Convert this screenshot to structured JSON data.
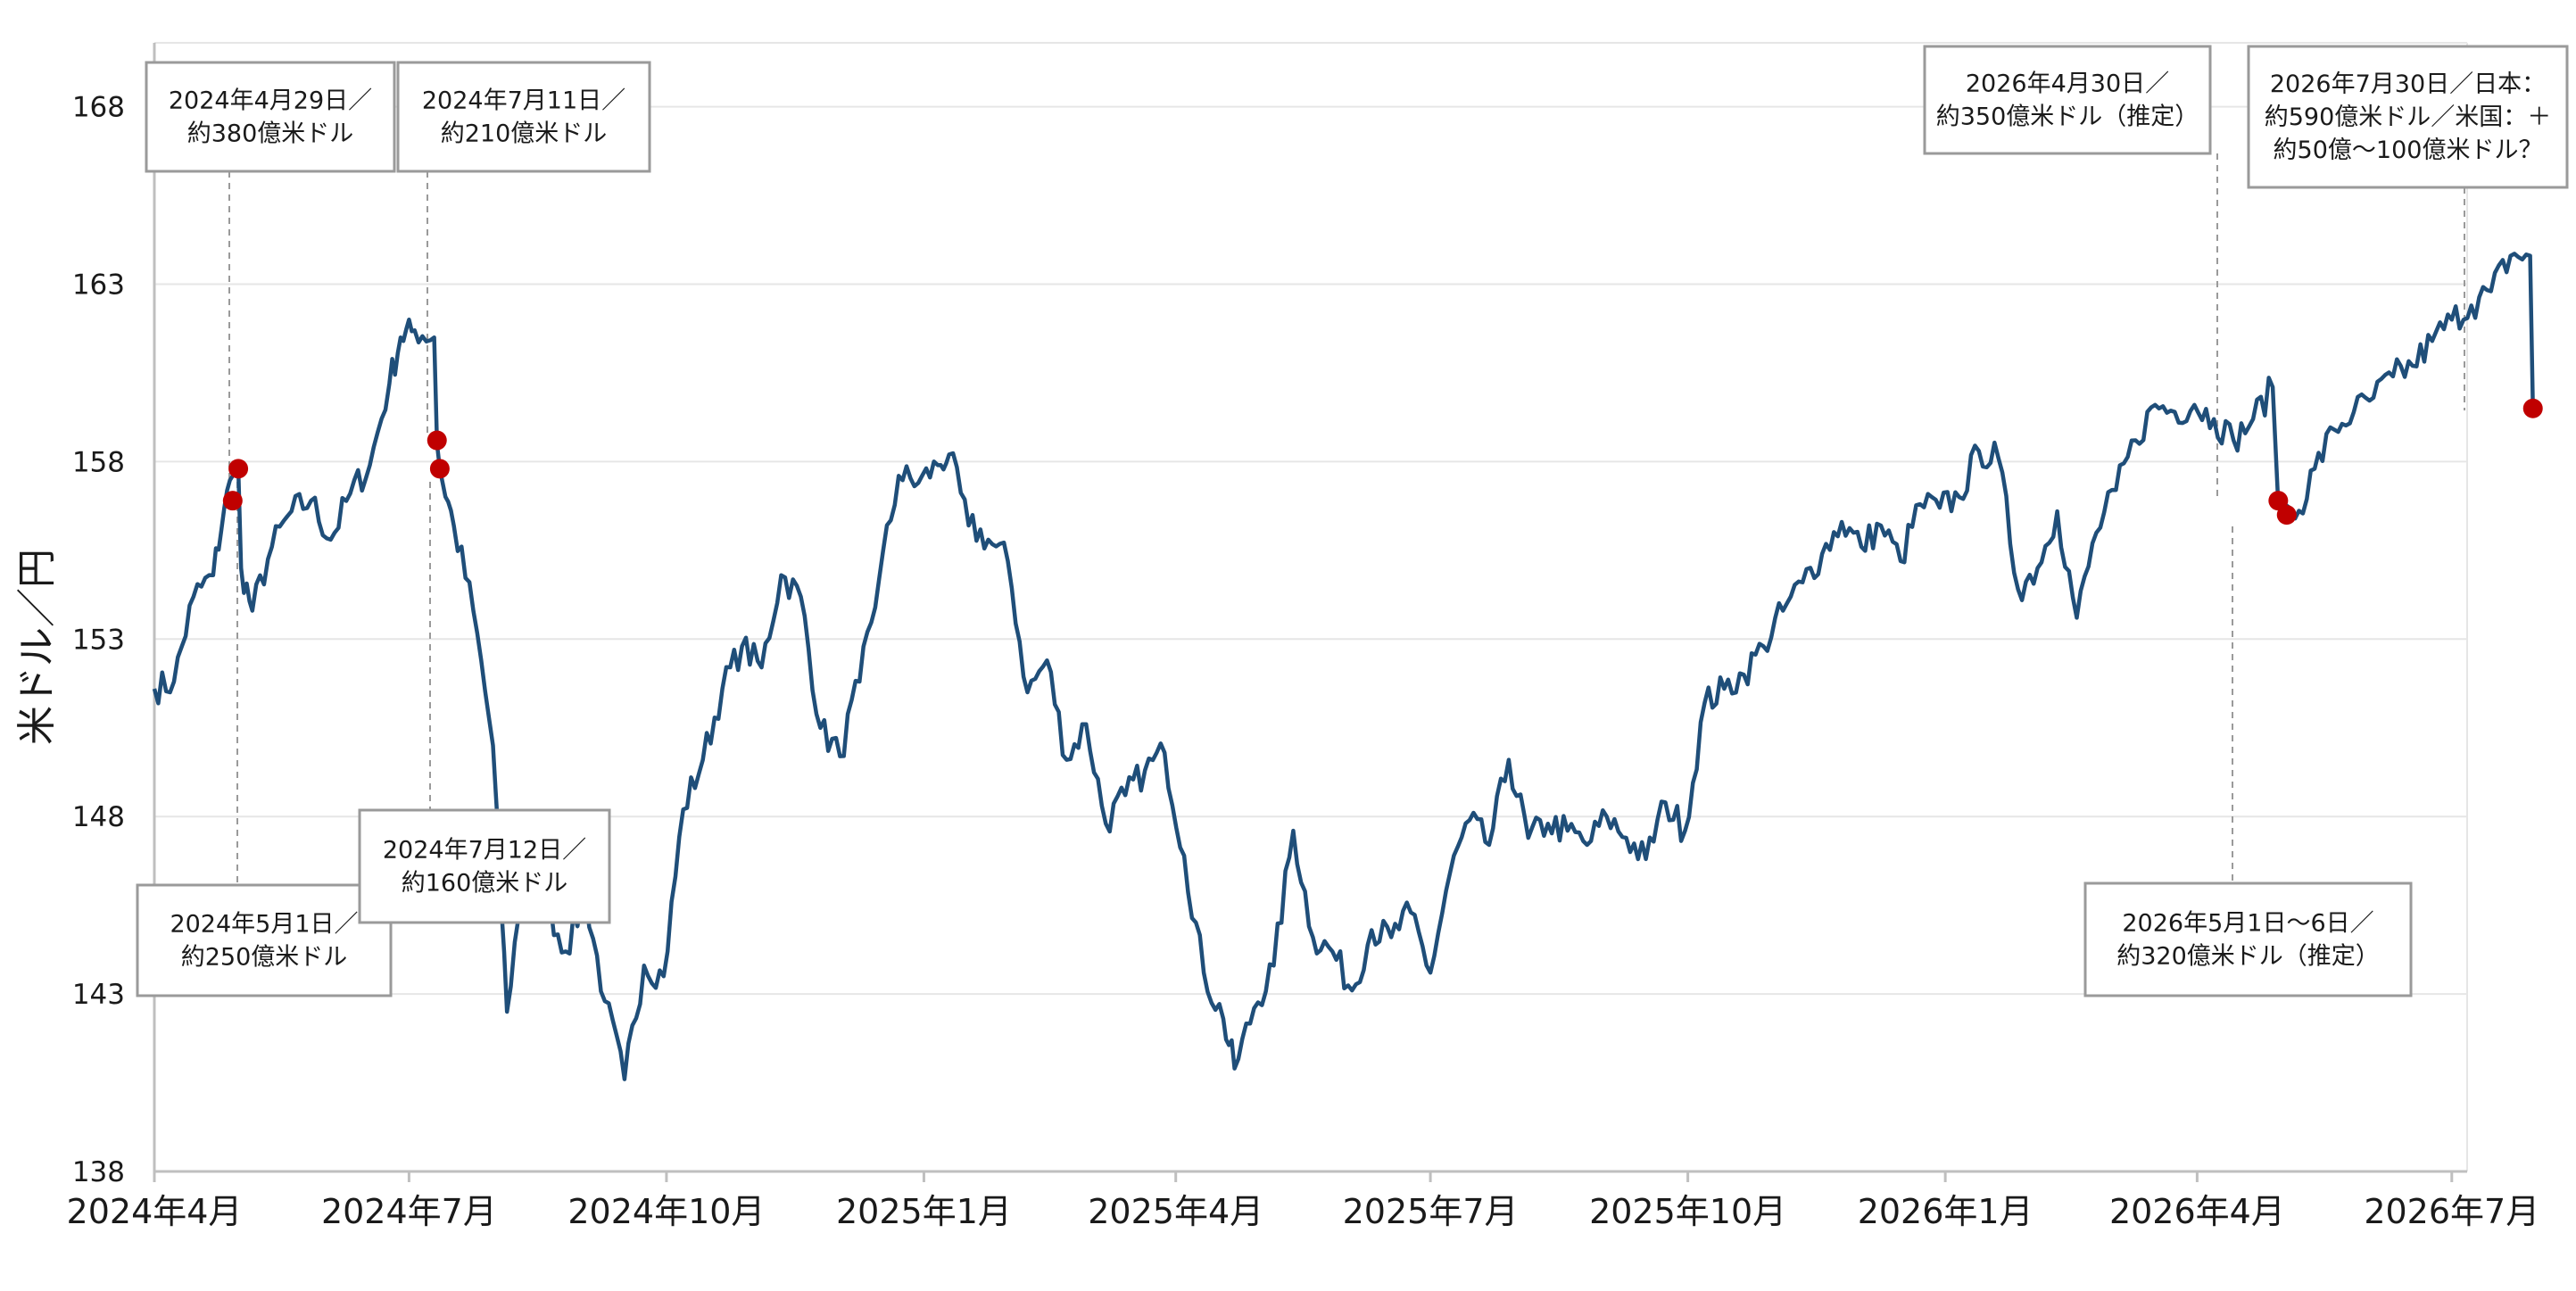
{
  "chart_data": {
    "type": "line",
    "title": "",
    "xlabel": "",
    "ylabel": "米ドル／円",
    "x_range": [
      "2024-04-01",
      "2026-08-01"
    ],
    "ylim": [
      138,
      170
    ],
    "yticks": [
      138,
      143,
      148,
      153,
      158,
      163,
      168
    ],
    "ytick_labels": [
      "138",
      "143",
      "148",
      "153",
      "158",
      "163",
      "168"
    ],
    "xticks": [
      "2024-04-01",
      "2024-07-01",
      "2024-10-01",
      "2025-01-01",
      "2025-04-01",
      "2025-07-01",
      "2025-10-01",
      "2026-01-01",
      "2026-04-01",
      "2026-07-01"
    ],
    "xtick_labels": [
      "2024年4月",
      "2024年7月",
      "2024年10月",
      "2025年1月",
      "2025年4月",
      "2025年7月",
      "2025年10月",
      "2026年1月",
      "2026年4月",
      "2026年7月"
    ],
    "grid": "horizontal",
    "line_color": "#1f4e79",
    "marker_color": "#c00000",
    "series": [
      {
        "values": [
          [
            "2024-04-01",
            151.6
          ],
          [
            "2024-04-08",
            151.8
          ],
          [
            "2024-04-15",
            154.2
          ],
          [
            "2024-04-22",
            154.8
          ],
          [
            "2024-04-26",
            156.7
          ],
          [
            "2024-04-29",
            157.6
          ],
          [
            "2024-05-01",
            157.8
          ],
          [
            "2024-05-02",
            155.0
          ],
          [
            "2024-05-06",
            153.8
          ],
          [
            "2024-05-13",
            155.6
          ],
          [
            "2024-05-20",
            156.6
          ],
          [
            "2024-05-27",
            156.9
          ],
          [
            "2024-06-03",
            155.8
          ],
          [
            "2024-06-10",
            157.1
          ],
          [
            "2024-06-17",
            157.9
          ],
          [
            "2024-06-24",
            160.2
          ],
          [
            "2024-06-28",
            161.5
          ],
          [
            "2024-07-03",
            161.7
          ],
          [
            "2024-07-10",
            161.5
          ],
          [
            "2024-07-11",
            158.5
          ],
          [
            "2024-07-12",
            157.8
          ],
          [
            "2024-07-17",
            156.2
          ],
          [
            "2024-07-24",
            153.8
          ],
          [
            "2024-07-31",
            150.0
          ],
          [
            "2024-08-05",
            142.5
          ],
          [
            "2024-08-12",
            147.2
          ],
          [
            "2024-08-19",
            145.6
          ],
          [
            "2024-08-26",
            144.2
          ],
          [
            "2024-09-02",
            145.8
          ],
          [
            "2024-09-09",
            142.8
          ],
          [
            "2024-09-16",
            140.6
          ],
          [
            "2024-09-23",
            143.8
          ],
          [
            "2024-09-30",
            143.5
          ],
          [
            "2024-10-07",
            148.2
          ],
          [
            "2024-10-14",
            149.6
          ],
          [
            "2024-10-21",
            151.6
          ],
          [
            "2024-10-28",
            152.8
          ],
          [
            "2024-11-04",
            152.2
          ],
          [
            "2024-11-11",
            154.8
          ],
          [
            "2024-11-18",
            154.2
          ],
          [
            "2024-11-25",
            150.5
          ],
          [
            "2024-12-02",
            149.7
          ],
          [
            "2024-12-09",
            151.8
          ],
          [
            "2024-12-16",
            154.7
          ],
          [
            "2024-12-23",
            157.6
          ],
          [
            "2024-12-30",
            157.4
          ],
          [
            "2025-01-06",
            157.9
          ],
          [
            "2025-01-10",
            158.2
          ],
          [
            "2025-01-17",
            156.2
          ],
          [
            "2025-01-24",
            155.8
          ],
          [
            "2025-01-31",
            155.2
          ],
          [
            "2025-02-07",
            151.5
          ],
          [
            "2025-02-14",
            152.4
          ],
          [
            "2025-02-21",
            149.6
          ],
          [
            "2025-02-28",
            150.6
          ],
          [
            "2025-03-07",
            147.8
          ],
          [
            "2025-03-14",
            148.6
          ],
          [
            "2025-03-21",
            149.3
          ],
          [
            "2025-03-28",
            149.8
          ],
          [
            "2025-04-04",
            146.9
          ],
          [
            "2025-04-11",
            143.6
          ],
          [
            "2025-04-18",
            142.3
          ],
          [
            "2025-04-22",
            140.9
          ],
          [
            "2025-04-29",
            142.6
          ],
          [
            "2025-05-06",
            143.8
          ],
          [
            "2025-05-13",
            147.6
          ],
          [
            "2025-05-20",
            144.6
          ],
          [
            "2025-05-27",
            144.2
          ],
          [
            "2025-06-03",
            143.1
          ],
          [
            "2025-06-10",
            144.8
          ],
          [
            "2025-06-17",
            144.6
          ],
          [
            "2025-06-24",
            145.3
          ],
          [
            "2025-07-01",
            143.6
          ],
          [
            "2025-07-08",
            146.4
          ],
          [
            "2025-07-15",
            147.9
          ],
          [
            "2025-07-22",
            147.2
          ],
          [
            "2025-07-29",
            149.6
          ],
          [
            "2025-08-05",
            147.4
          ],
          [
            "2025-08-12",
            147.8
          ],
          [
            "2025-08-19",
            147.6
          ],
          [
            "2025-08-26",
            147.2
          ],
          [
            "2025-09-02",
            148.0
          ],
          [
            "2025-09-09",
            147.4
          ],
          [
            "2025-09-16",
            146.8
          ],
          [
            "2025-09-23",
            148.4
          ],
          [
            "2025-09-30",
            147.6
          ],
          [
            "2025-10-07",
            151.2
          ],
          [
            "2025-10-14",
            151.6
          ],
          [
            "2025-10-21",
            152.0
          ],
          [
            "2025-10-28",
            152.8
          ],
          [
            "2025-11-04",
            153.8
          ],
          [
            "2025-11-11",
            154.6
          ],
          [
            "2025-11-18",
            155.4
          ],
          [
            "2025-11-25",
            156.3
          ],
          [
            "2025-12-02",
            155.6
          ],
          [
            "2025-12-09",
            156.2
          ],
          [
            "2025-12-16",
            155.2
          ],
          [
            "2025-12-23",
            156.8
          ],
          [
            "2025-12-30",
            156.7
          ],
          [
            "2026-01-06",
            157.0
          ],
          [
            "2026-01-13",
            158.3
          ],
          [
            "2026-01-20",
            158.1
          ],
          [
            "2026-01-27",
            154.4
          ],
          [
            "2026-02-03",
            155.0
          ],
          [
            "2026-02-10",
            156.6
          ],
          [
            "2026-02-17",
            153.6
          ],
          [
            "2026-02-24",
            156.0
          ],
          [
            "2026-03-03",
            157.2
          ],
          [
            "2026-03-10",
            158.6
          ],
          [
            "2026-03-17",
            159.6
          ],
          [
            "2026-03-24",
            159.4
          ],
          [
            "2026-03-31",
            159.6
          ],
          [
            "2026-04-07",
            159.2
          ],
          [
            "2026-04-14",
            158.6
          ],
          [
            "2026-04-21",
            159.2
          ],
          [
            "2026-04-28",
            160.1
          ],
          [
            "2026-04-30",
            156.8
          ],
          [
            "2026-05-01",
            156.5
          ],
          [
            "2026-05-04",
            156.7
          ],
          [
            "2026-05-06",
            156.4
          ],
          [
            "2026-05-13",
            157.8
          ],
          [
            "2026-05-20",
            158.9
          ],
          [
            "2026-05-27",
            159.4
          ],
          [
            "2026-06-03",
            159.8
          ],
          [
            "2026-06-10",
            160.4
          ],
          [
            "2026-06-17",
            160.7
          ],
          [
            "2026-06-24",
            161.4
          ],
          [
            "2026-07-01",
            162.0
          ],
          [
            "2026-07-08",
            162.4
          ],
          [
            "2026-07-15",
            162.8
          ],
          [
            "2026-07-22",
            163.8
          ],
          [
            "2026-07-29",
            163.8
          ],
          [
            "2026-07-30",
            159.5
          ]
        ]
      }
    ],
    "markers": [
      {
        "x": "2024-04-29",
        "y": 156.9
      },
      {
        "x": "2024-05-01",
        "y": 157.8
      },
      {
        "x": "2024-07-11",
        "y": 158.6
      },
      {
        "x": "2024-07-12",
        "y": 157.8
      },
      {
        "x": "2026-04-30",
        "y": 156.9
      },
      {
        "x": "2026-05-03",
        "y": 156.5
      },
      {
        "x": "2026-07-30",
        "y": 159.5
      }
    ],
    "annotations": [
      {
        "lines": [
          "2024年4月29日／",
          "約380億米ドル"
        ],
        "x": "2024-04-29",
        "side": "top"
      },
      {
        "lines": [
          "2024年7月11日／",
          "約210億米ドル"
        ],
        "x": "2024-07-11",
        "side": "top"
      },
      {
        "lines": [
          "2024年5月1日／",
          "約250億米ドル"
        ],
        "x": "2024-05-01",
        "side": "bottom"
      },
      {
        "lines": [
          "2024年7月12日／",
          "約160億米ドル"
        ],
        "x": "2024-07-12",
        "side": "middle"
      },
      {
        "lines": [
          "2026年4月30日／",
          "約350億米ドル（推定）"
        ],
        "x": "2026-04-30",
        "side": "top"
      },
      {
        "lines": [
          "2026年7月30日／日本：",
          "約590億米ドル／米国：＋",
          "約50億～100億米ドル？"
        ],
        "x": "2026-07-30",
        "side": "top"
      },
      {
        "lines": [
          "2026年5月1日～6日／",
          "約320億米ドル（推定）"
        ],
        "x": "2026-05-03",
        "side": "bottom"
      }
    ]
  }
}
